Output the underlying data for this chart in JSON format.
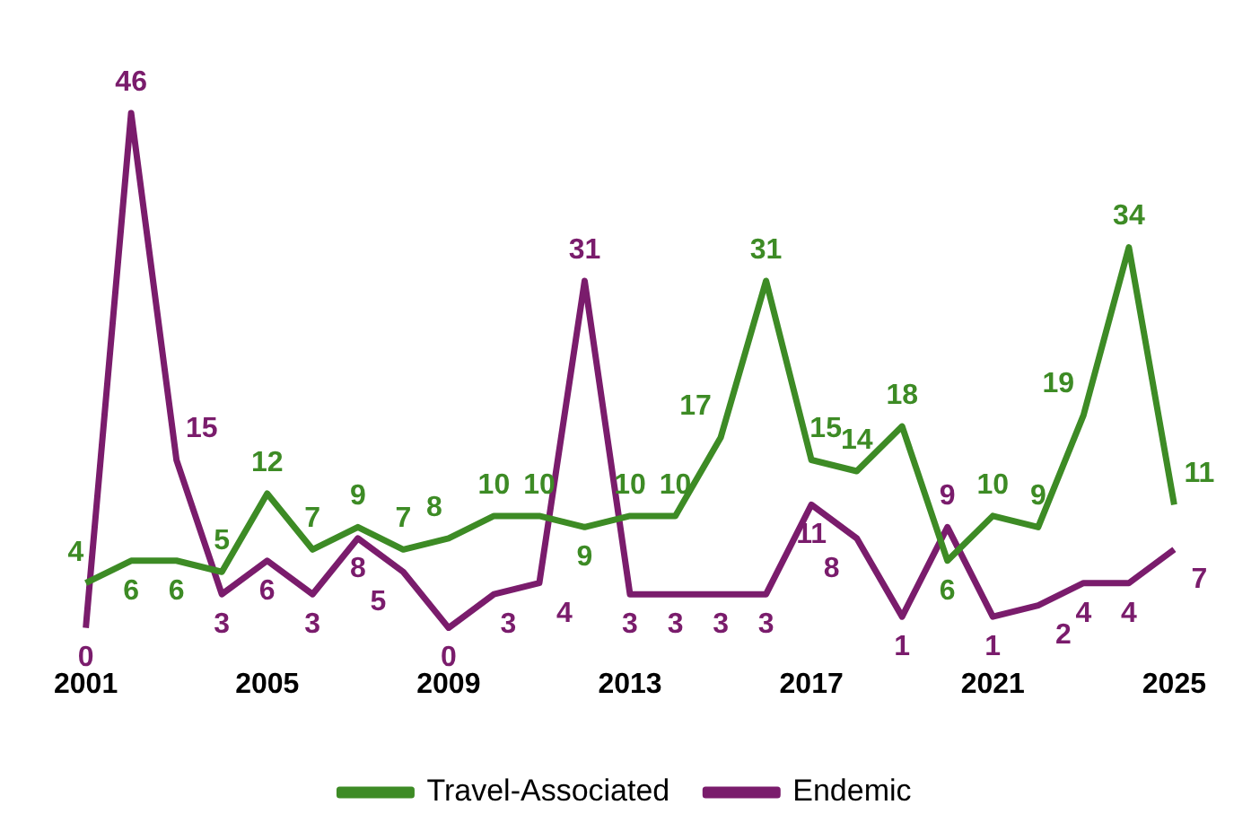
{
  "chart_data": {
    "type": "line",
    "categories": [
      "2001",
      null,
      null,
      null,
      "2005",
      null,
      null,
      null,
      "2009",
      null,
      null,
      null,
      "2013",
      null,
      null,
      null,
      "2017",
      null,
      null,
      null,
      "2021",
      null,
      null,
      null,
      "2025"
    ],
    "series": [
      {
        "name": "Travel-Associated",
        "color": "#3d8b25",
        "values": [
          4,
          6,
          6,
          5,
          12,
          7,
          9,
          7,
          8,
          10,
          10,
          9,
          10,
          10,
          17,
          31,
          15,
          14,
          18,
          6,
          10,
          9,
          19,
          34,
          11
        ]
      },
      {
        "name": "Endemic",
        "color": "#7a1c6c",
        "values": [
          0,
          46,
          15,
          3,
          6,
          3,
          8,
          5,
          0,
          3,
          4,
          31,
          3,
          3,
          3,
          3,
          11,
          8,
          1,
          9,
          1,
          2,
          4,
          4,
          7
        ]
      }
    ],
    "data_labels": true,
    "grid": false,
    "legend": "bottom",
    "tick_labels": "x",
    "marker": "none",
    "line_style": "solid"
  }
}
